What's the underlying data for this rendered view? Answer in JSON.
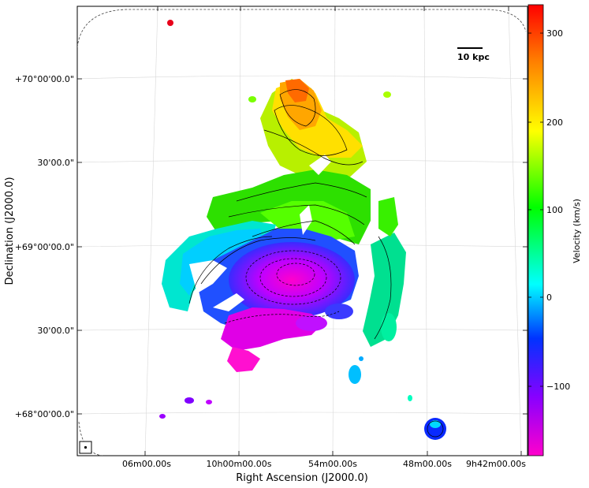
{
  "axes": {
    "xlabel": "Right Ascension (J2000.0)",
    "ylabel": "Declination (J2000.0)",
    "x_ticks": [
      "06m00.00s",
      "10h00m00.00s",
      "54m00.00s",
      "48m00.00s",
      "9h42m00.00s"
    ],
    "y_ticks": [
      "+70°00'00.0\"",
      "30'00.0\"",
      "+69°00'00.0\"",
      "30'00.0\"",
      "+68°00'00.0\""
    ]
  },
  "scale_bar": {
    "label": "10 kpc"
  },
  "colorbar": {
    "label": "Velocity (km/s)",
    "ticks": [
      "300",
      "200",
      "100",
      "0",
      "−100"
    ],
    "range": [
      -175,
      330
    ],
    "colors": [
      "#ff0000",
      "#ff8800",
      "#ffff00",
      "#00ff00",
      "#00ffff",
      "#0044ff",
      "#8800ff",
      "#ff00cc"
    ]
  },
  "beam_icon": "beam-marker-icon"
}
